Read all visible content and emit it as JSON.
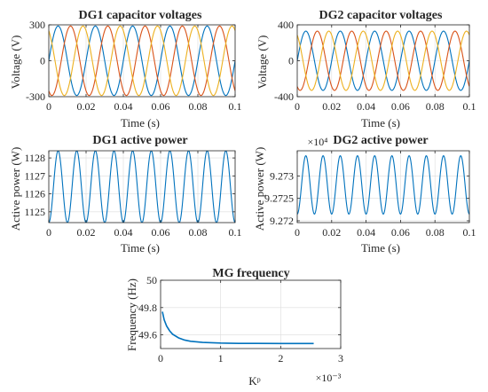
{
  "figure": {
    "background": "#ffffff",
    "line_colors": [
      "#0072BD",
      "#D95319",
      "#EDB120"
    ]
  },
  "chart_data": [
    {
      "type": "line",
      "title": "DG1 capacitor voltages",
      "xlabel": "Time (s)",
      "ylabel": "Voltage (V)",
      "xlim": [
        0,
        0.1
      ],
      "ylim": [
        -300,
        300
      ],
      "xticks": [
        0,
        0.02,
        0.04,
        0.06,
        0.08,
        0.1
      ],
      "xtick_labels": [
        "0",
        "0.02",
        "0.04",
        "0.06",
        "0.08",
        "0.1"
      ],
      "yticks": [
        -300,
        0,
        300
      ],
      "ytick_labels": [
        "-300",
        "0",
        "300"
      ],
      "grid": true,
      "signal": {
        "kind": "three-phase sine",
        "amplitude": 290,
        "frequency_hz": 50,
        "phase_offsets_deg": [
          0,
          -120,
          120
        ],
        "samples": [
          {
            "x": 0.0,
            "phase_a": 0,
            "phase_b": -251,
            "phase_c": 251
          },
          {
            "x": 0.005,
            "phase_a": 290,
            "phase_b": -145,
            "phase_c": -145
          },
          {
            "x": 0.01,
            "phase_a": 0,
            "phase_b": 251,
            "phase_c": -251
          },
          {
            "x": 0.015,
            "phase_a": -290,
            "phase_b": 145,
            "phase_c": 145
          },
          {
            "x": 0.02,
            "phase_a": 0,
            "phase_b": -251,
            "phase_c": 251
          }
        ]
      }
    },
    {
      "type": "line",
      "title": "DG2 capacitor voltages",
      "xlabel": "Time (s)",
      "ylabel": "Voltage (V)",
      "xlim": [
        0,
        0.1
      ],
      "ylim": [
        -400,
        400
      ],
      "xticks": [
        0,
        0.02,
        0.04,
        0.06,
        0.08,
        0.1
      ],
      "xtick_labels": [
        "0",
        "0.02",
        "0.04",
        "0.06",
        "0.08",
        "0.1"
      ],
      "yticks": [
        -400,
        0,
        400
      ],
      "ytick_labels": [
        "-400",
        "0",
        "400"
      ],
      "grid": true,
      "signal": {
        "kind": "three-phase sine",
        "amplitude": 330,
        "frequency_hz": 50,
        "phase_offsets_deg": [
          0,
          -120,
          120
        ],
        "samples": [
          {
            "x": 0.0,
            "phase_a": 0,
            "phase_b": -286,
            "phase_c": 286
          },
          {
            "x": 0.005,
            "phase_a": 330,
            "phase_b": -165,
            "phase_c": -165
          },
          {
            "x": 0.01,
            "phase_a": 0,
            "phase_b": 286,
            "phase_c": -286
          },
          {
            "x": 0.015,
            "phase_a": -330,
            "phase_b": 165,
            "phase_c": 165
          },
          {
            "x": 0.02,
            "phase_a": 0,
            "phase_b": -286,
            "phase_c": 286
          }
        ]
      }
    },
    {
      "type": "line",
      "title": "DG1 active power",
      "xlabel": "Time (s)",
      "ylabel": "Active power (W)",
      "xlim": [
        0,
        0.1
      ],
      "ylim": [
        1124.4,
        1128.4
      ],
      "xticks": [
        0,
        0.02,
        0.04,
        0.06,
        0.08,
        0.1
      ],
      "xtick_labels": [
        "0",
        "0.02",
        "0.04",
        "0.06",
        "0.08",
        "0.1"
      ],
      "yticks": [
        1125,
        1126,
        1127,
        1128
      ],
      "ytick_labels": [
        "1125",
        "1126",
        "1127",
        "1128"
      ],
      "grid": true,
      "signal": {
        "kind": "sinusoid",
        "mean": 1126.4,
        "amplitude": 2.0,
        "frequency_hz": 100,
        "samples": [
          {
            "x": 0.0,
            "y": 1124.4
          },
          {
            "x": 0.005,
            "y": 1128.4
          },
          {
            "x": 0.01,
            "y": 1124.4
          },
          {
            "x": 0.015,
            "y": 1128.4
          },
          {
            "x": 0.02,
            "y": 1124.4
          }
        ]
      }
    },
    {
      "type": "line",
      "title": "DG2 active power",
      "xlabel": "Time (s)",
      "ylabel": "Active power (W)",
      "xlim": [
        0,
        0.1
      ],
      "ylim": [
        92719.6,
        92735.6
      ],
      "y_exponent_label": "×10⁴",
      "xticks": [
        0,
        0.02,
        0.04,
        0.06,
        0.08,
        0.1
      ],
      "xtick_labels": [
        "0",
        "0.02",
        "0.04",
        "0.06",
        "0.08",
        "0.1"
      ],
      "yticks": [
        92720,
        92725,
        92730
      ],
      "ytick_labels": [
        "9.272",
        "9.2725",
        "9.273"
      ],
      "grid": true,
      "signal": {
        "kind": "sinusoid",
        "mean": 92728,
        "amplitude": 6.5,
        "frequency_hz": 100,
        "samples": [
          {
            "x": 0.0,
            "y": 92721.5
          },
          {
            "x": 0.005,
            "y": 92734.5
          },
          {
            "x": 0.01,
            "y": 92721.5
          },
          {
            "x": 0.015,
            "y": 92734.5
          },
          {
            "x": 0.02,
            "y": 92721.5
          }
        ]
      }
    },
    {
      "type": "line",
      "title": "MG frequency",
      "xlabel": "Kᵖ",
      "ylabel": "Frequency (Hz)",
      "x_exponent_label": "×10⁻³",
      "xlim": [
        0,
        0.003
      ],
      "ylim": [
        49.5,
        50
      ],
      "xticks": [
        0,
        0.001,
        0.002,
        0.003
      ],
      "xtick_labels": [
        "0",
        "1",
        "2",
        "3"
      ],
      "yticks": [
        49.6,
        49.8,
        50
      ],
      "ytick_labels": [
        "49.6",
        "49.8",
        "50"
      ],
      "grid": true,
      "series": [
        {
          "x": [
            3e-05,
            6e-05,
            0.0001,
            0.00015,
            0.0002,
            0.0003,
            0.0004,
            0.0005,
            0.0007,
            0.001,
            0.0013,
            0.0016,
            0.002,
            0.0023,
            0.00255
          ],
          "y": [
            49.77,
            49.71,
            49.665,
            49.63,
            49.605,
            49.578,
            49.562,
            49.553,
            49.545,
            49.54,
            49.538,
            49.538,
            49.537,
            49.537,
            49.537
          ]
        }
      ]
    }
  ]
}
